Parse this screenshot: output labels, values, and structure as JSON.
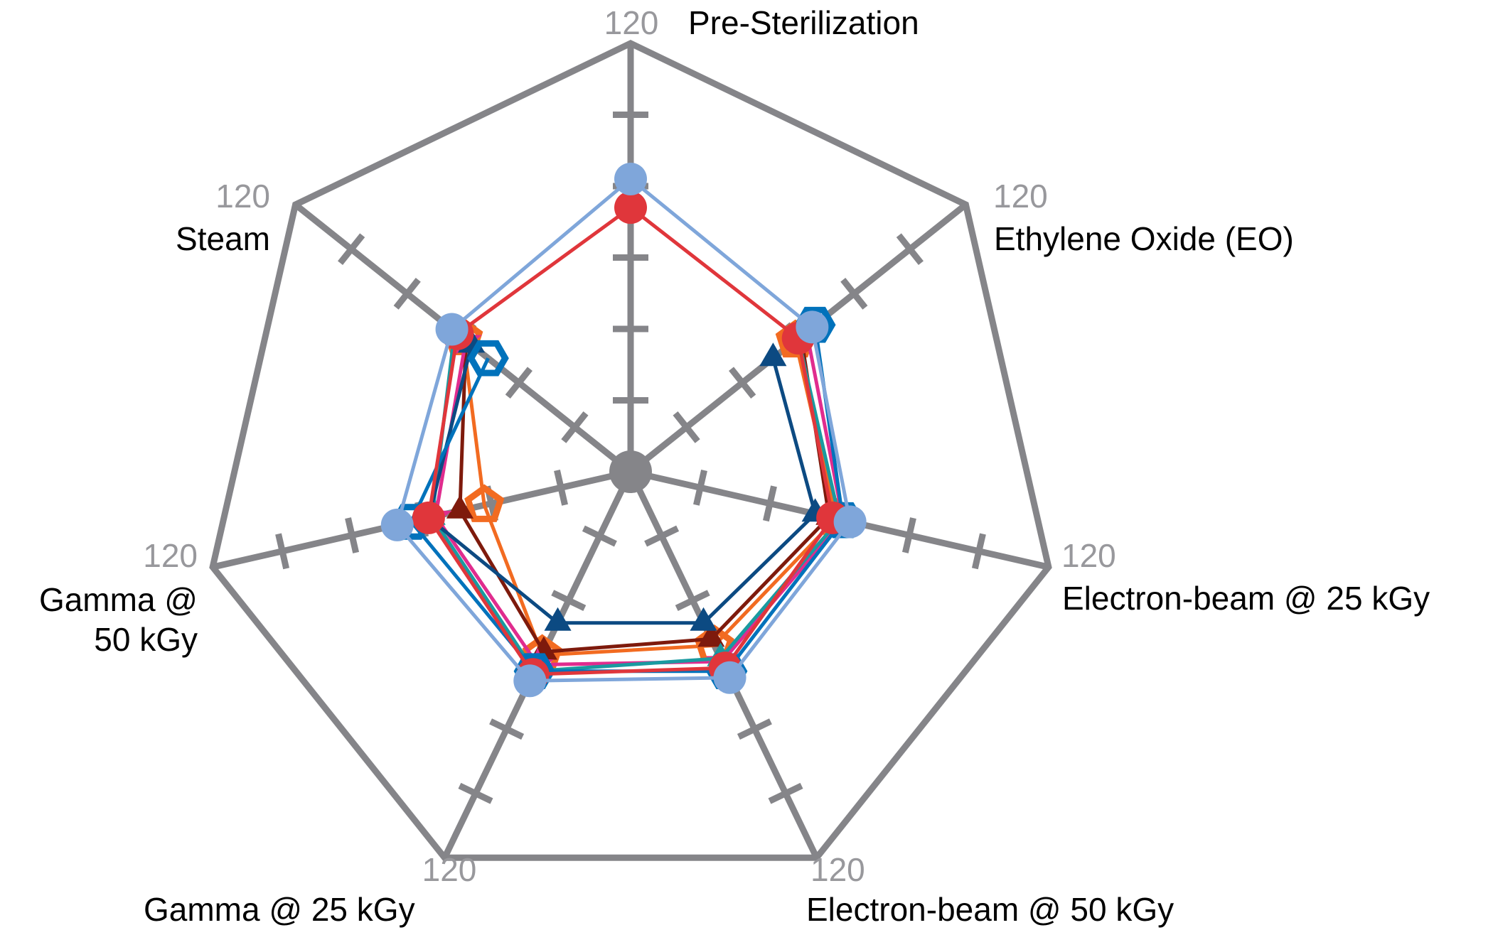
{
  "chart_data": {
    "type": "radar",
    "axes": [
      "Pre-Sterilization",
      "Ethylene Oxide (EO)",
      "Electron-beam @ 25 kGy",
      "Electron-beam @ 50 kGy",
      "Gamma @ 25 kGy",
      "Gamma @ 50 kGy",
      "Steam"
    ],
    "axis_max": 120,
    "axis_min": 0,
    "tick_step": 20,
    "max_label": "120",
    "grid_color": "#858589",
    "series": [
      {
        "color": "#7fa6da",
        "marker": "circle",
        "values": [
          82,
          65,
          63,
          64,
          65,
          67,
          64
        ]
      },
      {
        "color": "#e0363b",
        "marker": "circle",
        "values": [
          74,
          60,
          58,
          61,
          63,
          58,
          62
        ]
      },
      {
        "color": "#0072bb",
        "marker": "hexagon",
        "values": [
          null,
          66,
          61,
          62,
          62,
          63,
          51
        ]
      },
      {
        "color": "#0c4a82",
        "marker": "triangle",
        "values": [
          null,
          51,
          53,
          47,
          47,
          58,
          57
        ]
      },
      {
        "color": "#1a9aa0",
        "marker": "triangle",
        "values": [
          null,
          60,
          60,
          58,
          62,
          57,
          63
        ]
      },
      {
        "color": "#e02c8e",
        "marker": "star",
        "values": [
          null,
          63,
          61,
          59,
          60,
          56,
          59
        ]
      },
      {
        "color": "#7e1a0c",
        "marker": "triangle",
        "values": [
          null,
          61,
          57,
          52,
          56,
          49,
          59
        ]
      },
      {
        "color": "#f26b21",
        "marker": "pentagon",
        "values": [
          null,
          59,
          59,
          54,
          57,
          42,
          60
        ]
      }
    ]
  }
}
